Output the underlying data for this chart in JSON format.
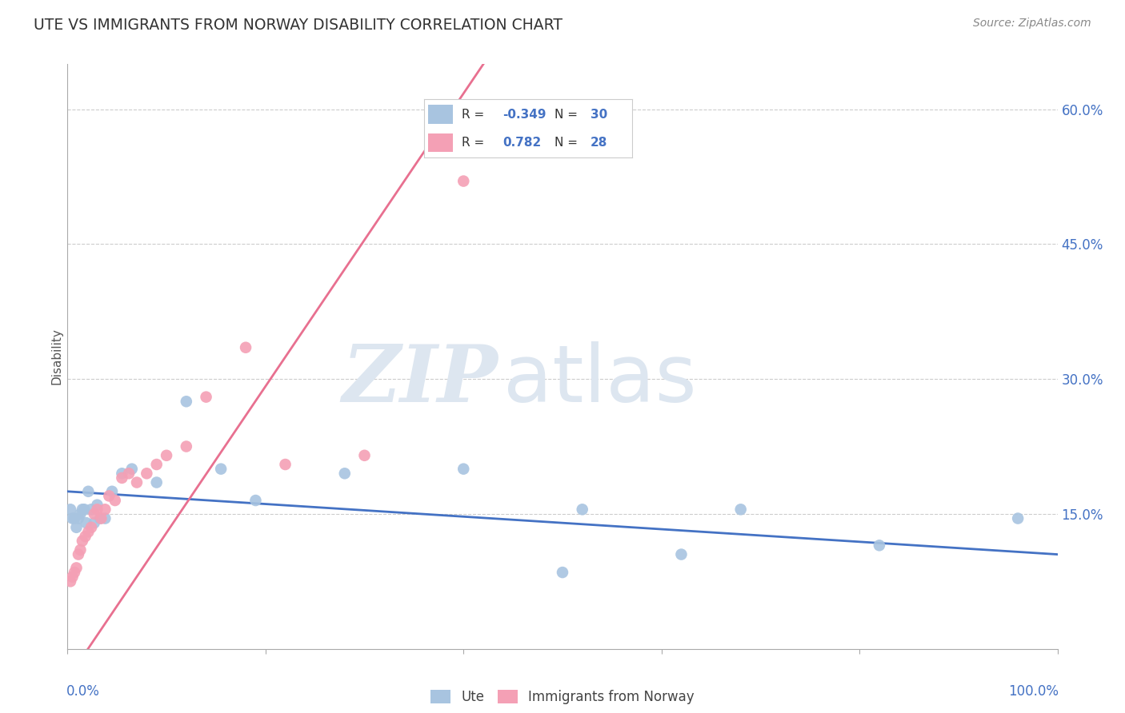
{
  "title": "UTE VS IMMIGRANTS FROM NORWAY DISABILITY CORRELATION CHART",
  "source": "Source: ZipAtlas.com",
  "ylabel": "Disability",
  "ytick_values": [
    0.0,
    0.15,
    0.3,
    0.45,
    0.6
  ],
  "xlim": [
    0.0,
    1.0
  ],
  "ylim": [
    0.0,
    0.65
  ],
  "legend_r_ute": "-0.349",
  "legend_n_ute": "30",
  "legend_r_norway": "0.782",
  "legend_n_norway": "28",
  "ute_color": "#a8c4e0",
  "norway_color": "#f4a0b5",
  "ute_line_color": "#4472c4",
  "norway_line_color": "#e87090",
  "ute_x": [
    0.003,
    0.005,
    0.007,
    0.009,
    0.011,
    0.013,
    0.015,
    0.017,
    0.019,
    0.021,
    0.024,
    0.027,
    0.03,
    0.033,
    0.038,
    0.045,
    0.055,
    0.065,
    0.09,
    0.12,
    0.155,
    0.19,
    0.28,
    0.4,
    0.52,
    0.68,
    0.82,
    0.96,
    0.5,
    0.62
  ],
  "ute_y": [
    0.155,
    0.145,
    0.145,
    0.135,
    0.145,
    0.15,
    0.155,
    0.155,
    0.14,
    0.175,
    0.155,
    0.14,
    0.16,
    0.145,
    0.145,
    0.175,
    0.195,
    0.2,
    0.185,
    0.275,
    0.2,
    0.165,
    0.195,
    0.2,
    0.155,
    0.155,
    0.115,
    0.145,
    0.085,
    0.105
  ],
  "norway_x": [
    0.003,
    0.005,
    0.007,
    0.009,
    0.011,
    0.013,
    0.015,
    0.018,
    0.021,
    0.024,
    0.027,
    0.03,
    0.034,
    0.038,
    0.042,
    0.048,
    0.055,
    0.062,
    0.07,
    0.08,
    0.09,
    0.1,
    0.12,
    0.14,
    0.18,
    0.22,
    0.3,
    0.4
  ],
  "norway_y": [
    0.075,
    0.08,
    0.085,
    0.09,
    0.105,
    0.11,
    0.12,
    0.125,
    0.13,
    0.135,
    0.15,
    0.155,
    0.145,
    0.155,
    0.17,
    0.165,
    0.19,
    0.195,
    0.185,
    0.195,
    0.205,
    0.215,
    0.225,
    0.28,
    0.335,
    0.205,
    0.215,
    0.52
  ],
  "ute_trend": [
    0.0,
    1.0,
    0.175,
    0.105
  ],
  "norway_trend": [
    -0.01,
    0.42,
    -0.05,
    0.65
  ]
}
